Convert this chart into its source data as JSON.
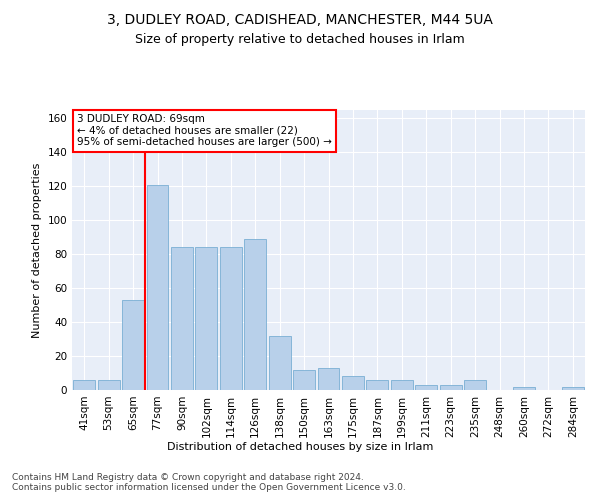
{
  "title1": "3, DUDLEY ROAD, CADISHEAD, MANCHESTER, M44 5UA",
  "title2": "Size of property relative to detached houses in Irlam",
  "xlabel": "Distribution of detached houses by size in Irlam",
  "ylabel": "Number of detached properties",
  "bar_labels": [
    "41sqm",
    "53sqm",
    "65sqm",
    "77sqm",
    "90sqm",
    "102sqm",
    "114sqm",
    "126sqm",
    "138sqm",
    "150sqm",
    "163sqm",
    "175sqm",
    "187sqm",
    "199sqm",
    "211sqm",
    "223sqm",
    "235sqm",
    "248sqm",
    "260sqm",
    "272sqm",
    "284sqm"
  ],
  "bar_values": [
    6,
    6,
    53,
    121,
    84,
    84,
    84,
    89,
    32,
    12,
    13,
    8,
    6,
    6,
    3,
    3,
    6,
    0,
    2,
    0,
    2
  ],
  "bar_color": "#b8d0ea",
  "bar_edge_color": "#7aafd4",
  "vline_x": 2.5,
  "vline_color": "red",
  "annotation_box_text": "3 DUDLEY ROAD: 69sqm\n← 4% of detached houses are smaller (22)\n95% of semi-detached houses are larger (500) →",
  "ylim": [
    0,
    165
  ],
  "yticks": [
    0,
    20,
    40,
    60,
    80,
    100,
    120,
    140,
    160
  ],
  "bg_color": "#e8eef8",
  "title1_fontsize": 10,
  "title2_fontsize": 9,
  "axis_fontsize": 7.5,
  "ylabel_fontsize": 8,
  "footer_fontsize": 6.5,
  "xlabel_fontsize": 8,
  "footer_text": "Contains HM Land Registry data © Crown copyright and database right 2024.\nContains public sector information licensed under the Open Government Licence v3.0."
}
